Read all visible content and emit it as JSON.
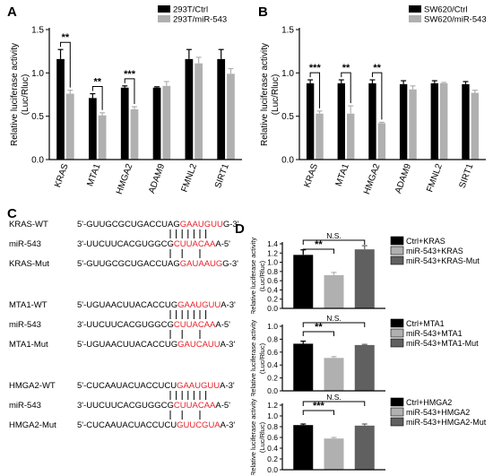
{
  "chart_data": [
    {
      "panel": "A",
      "type": "bar",
      "ylabel": "Relative luciferase activity\n(Luc/Rluc)",
      "ylim": [
        0,
        1.5
      ],
      "yticks": [
        "0.0",
        "0.5",
        "1.0",
        "1.5"
      ],
      "categories": [
        "KRAS",
        "MTA1",
        "HMGA2",
        "ADAM9",
        "FMNL2",
        "SIRT1"
      ],
      "series": [
        {
          "name": "293T/Ctrl",
          "color": "#000000",
          "values": [
            1.16,
            0.71,
            0.83,
            0.83,
            1.16,
            1.16
          ],
          "errors": [
            0.11,
            0.05,
            0.02,
            0.01,
            0.11,
            0.11
          ]
        },
        {
          "name": "293T/miR-543",
          "color": "#b0b0b0",
          "values": [
            0.76,
            0.51,
            0.58,
            0.85,
            1.11,
            0.99
          ],
          "errors": [
            0.04,
            0.03,
            0.03,
            0.05,
            0.07,
            0.06
          ]
        }
      ],
      "significance": [
        {
          "index": 0,
          "label": "**"
        },
        {
          "index": 1,
          "label": "**"
        },
        {
          "index": 2,
          "label": "***"
        }
      ]
    },
    {
      "panel": "B",
      "type": "bar",
      "ylabel": "Relative luciferase activity\n(Luc/Rluc)",
      "ylim": [
        0,
        1.5
      ],
      "yticks": [
        "0.0",
        "0.5",
        "1.0",
        "1.5"
      ],
      "categories": [
        "KRAS",
        "MTA1",
        "HMGA2",
        "ADAM9",
        "FMNL2",
        "SIRT1"
      ],
      "series": [
        {
          "name": "SW620/Ctrl",
          "color": "#000000",
          "values": [
            0.88,
            0.88,
            0.88,
            0.87,
            0.88,
            0.87
          ],
          "errors": [
            0.04,
            0.04,
            0.04,
            0.04,
            0.03,
            0.03
          ]
        },
        {
          "name": "SW620/miR-543",
          "color": "#b0b0b0",
          "values": [
            0.53,
            0.53,
            0.42,
            0.81,
            0.88,
            0.77
          ],
          "errors": [
            0.03,
            0.09,
            0.01,
            0.04,
            0.01,
            0.03
          ]
        }
      ],
      "significance": [
        {
          "index": 0,
          "label": "***"
        },
        {
          "index": 1,
          "label": "**"
        },
        {
          "index": 2,
          "label": "**"
        }
      ]
    },
    {
      "panel": "D1",
      "type": "bar",
      "ylabel": "Relative luciferase activity\n(Luc/Rluc)",
      "ylim": [
        0,
        1.4
      ],
      "yticks": [
        "0.0",
        "0.2",
        "0.4",
        "0.6",
        "0.8",
        "1.0",
        "1.2",
        "1.4"
      ],
      "categories": [
        "Ctrl+KRAS",
        "miR-543+KRAS",
        "miR-543+KRAS-Mut"
      ],
      "values": [
        1.16,
        0.72,
        1.28
      ],
      "errors": [
        0.11,
        0.06,
        0.08
      ],
      "colors": [
        "#000000",
        "#b0b0b0",
        "#606060"
      ],
      "brackets": [
        {
          "from": 0,
          "to": 2,
          "label": "N.S."
        },
        {
          "from": 0,
          "to": 1,
          "label": "**"
        }
      ]
    },
    {
      "panel": "D2",
      "type": "bar",
      "ylabel": "Relative luciferase activity\n(Luc/Rluc)",
      "ylim": [
        0,
        1.0
      ],
      "yticks": [
        "0.0",
        "0.2",
        "0.4",
        "0.6",
        "0.8",
        "1.0"
      ],
      "categories": [
        "Ctrl+MTA1",
        "miR-543+MTA1",
        "miR-543+MTA1-Mut"
      ],
      "values": [
        0.73,
        0.51,
        0.71
      ],
      "errors": [
        0.04,
        0.02,
        0.01
      ],
      "colors": [
        "#000000",
        "#b0b0b0",
        "#606060"
      ],
      "brackets": [
        {
          "from": 0,
          "to": 2,
          "label": "N.S."
        },
        {
          "from": 0,
          "to": 1,
          "label": "**"
        }
      ]
    },
    {
      "panel": "D3",
      "type": "bar",
      "ylabel": "Relative luciferase activity\n(Luc/Rluc)",
      "ylim": [
        0,
        1.2
      ],
      "yticks": [
        "0.0",
        "0.2",
        "0.4",
        "0.6",
        "0.8",
        "1.0",
        "1.2"
      ],
      "categories": [
        "Ctrl+HMGA2",
        "miR-543+HMGA2",
        "miR-543+HMGA2-Mut"
      ],
      "values": [
        0.83,
        0.58,
        0.82
      ],
      "errors": [
        0.02,
        0.02,
        0.03
      ],
      "colors": [
        "#000000",
        "#b0b0b0",
        "#606060"
      ],
      "brackets": [
        {
          "from": 0,
          "to": 2,
          "label": "N.S."
        },
        {
          "from": 0,
          "to": 1,
          "label": "***"
        }
      ]
    }
  ],
  "panel_labels": {
    "A": "A",
    "B": "B",
    "C": "C",
    "D": "D"
  },
  "sequences": [
    {
      "rows": [
        {
          "name": "KRAS-WT",
          "pre": "5'-GUUGCGCUGACCUAG",
          "hl": "GAAUGUU",
          "post": "G-3'"
        },
        {
          "name": "miR-543",
          "pre": "3'-UUCUUCACGUGGCG",
          "hl": "CUUACAA",
          "post": "A-5'"
        },
        {
          "name": "KRAS-Mut",
          "pre": "5'-GUUGCGCUGACCUAG",
          "hl": "GAUAAUG",
          "post": "G-3'"
        }
      ]
    },
    {
      "rows": [
        {
          "name": "MTA1-WT",
          "pre": "5'-UGUAACUUACACCUG",
          "hl": "GAAUGUU",
          "post": "A-3'"
        },
        {
          "name": "miR-543",
          "pre": "3'-UUCUUCACGUGGCG",
          "hl": "CUUACAA",
          "post": "A-5'"
        },
        {
          "name": "MTA1-Mut",
          "pre": "5'-UGUAACUUACACCUG",
          "hl": "GAUCAUU",
          "post": "A-3'"
        }
      ]
    },
    {
      "rows": [
        {
          "name": "HMGA2-WT",
          "pre": "5'-CUCAAUACUACCUCU",
          "hl": "GAAUGUU",
          "post": "A-3'"
        },
        {
          "name": "miR-543",
          "pre": "3'-UUCUUCACGUGGCG",
          "hl": "CUUACAA",
          "post": "A-5'"
        },
        {
          "name": "HMGA2-Mut",
          "pre": "5'-CUCAAUACUACCUCU",
          "hl": "GUUCGUA",
          "post": "A-3'"
        }
      ]
    }
  ],
  "colors": {
    "highlight": "#e8232a",
    "black_bar": "#000000",
    "grey_bar": "#b0b0b0",
    "dark_bar": "#606060"
  }
}
